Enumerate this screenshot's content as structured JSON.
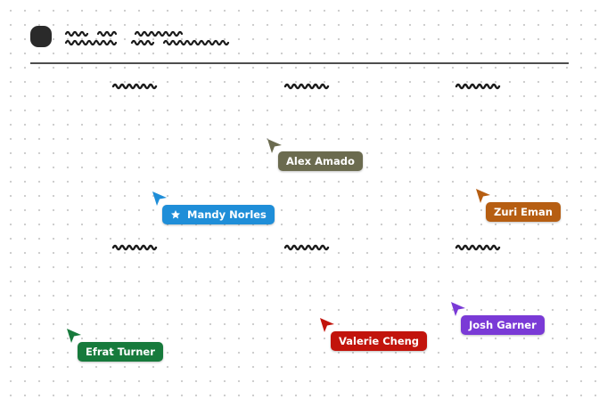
{
  "header": {
    "logo_icon": "rounded-square-logo-icon",
    "title_scribble": "illegible-handwritten-title",
    "subtitle_scribble": "illegible-handwritten-subtitle"
  },
  "column_labels": [
    "illegible-scribble",
    "illegible-scribble",
    "illegible-scribble",
    "illegible-scribble",
    "illegible-scribble",
    "illegible-scribble"
  ],
  "collaborators": [
    {
      "id": "alex-amado",
      "name": "Alex Amado",
      "color": "#6b6b4f",
      "starred": false
    },
    {
      "id": "mandy-norles",
      "name": "Mandy Norles",
      "color": "#1f8ed8",
      "starred": true
    },
    {
      "id": "zuri-eman",
      "name": "Zuri Eman",
      "color": "#b65e12",
      "starred": false
    },
    {
      "id": "josh-garner",
      "name": "Josh Garner",
      "color": "#7a3ad6",
      "starred": false
    },
    {
      "id": "valerie-cheng",
      "name": "Valerie Cheng",
      "color": "#c2140c",
      "starred": false
    },
    {
      "id": "efrat-turner",
      "name": "Efrat Turner",
      "color": "#177a3c",
      "starred": false
    }
  ],
  "icons": {
    "cursor": "pointer-cursor-icon",
    "star": "star-icon"
  }
}
